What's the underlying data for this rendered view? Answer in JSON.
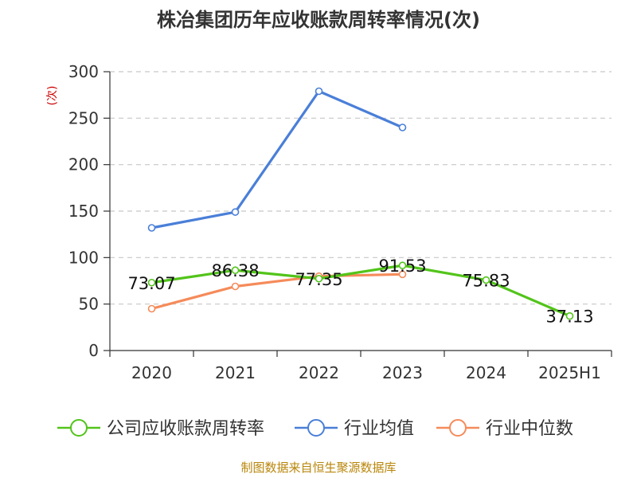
{
  "chart_data": {
    "type": "line",
    "title": "株冶集团历年应收账款周转率情况(次)",
    "ylabel": "(次)",
    "xlabel": "",
    "categories": [
      "2020",
      "2021",
      "2022",
      "2023",
      "2024",
      "2025H1"
    ],
    "ylim": [
      0,
      300
    ],
    "yticks": [
      0,
      50,
      100,
      150,
      200,
      250,
      300
    ],
    "grid": true,
    "legend_position": "bottom",
    "series": [
      {
        "name": "公司应收账款周转率",
        "color": "#52c41a",
        "values": [
          73.07,
          86.38,
          77.35,
          91.53,
          75.83,
          37.13
        ],
        "labels": [
          "73.07",
          "86.38",
          "77.35",
          "91.53",
          "75.83",
          "37.13"
        ]
      },
      {
        "name": "行业均值",
        "color": "#4a7fd8",
        "values": [
          132,
          149,
          279,
          240,
          null,
          null
        ]
      },
      {
        "name": "行业中位数",
        "color": "#f58b5a",
        "values": [
          45,
          69,
          80,
          82,
          null,
          null
        ]
      }
    ]
  },
  "source": "制图数据来自恒生聚源数据库"
}
